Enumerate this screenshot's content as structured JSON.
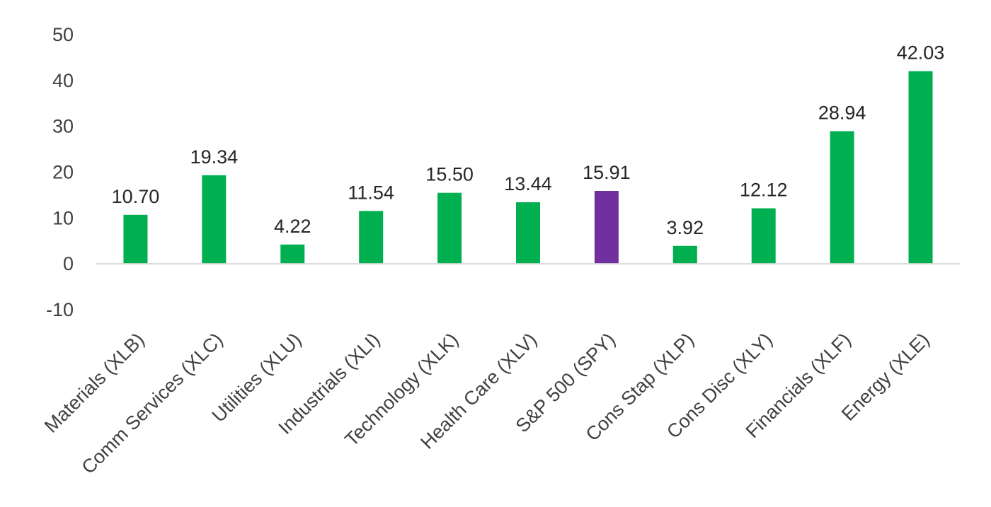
{
  "chart_data": {
    "type": "bar",
    "title": "",
    "xlabel": "",
    "ylabel": "",
    "ylim": [
      -10,
      50
    ],
    "yticks": [
      50,
      40,
      30,
      20,
      10,
      0,
      -10
    ],
    "grid": false,
    "legend": "none",
    "categories": [
      "Materials (XLB)",
      "Comm Services (XLC)",
      "Utilities (XLU)",
      "Industrials (XLI)",
      "Technology (XLK)",
      "Health Care (XLV)",
      "S&P 500 (SPY)",
      "Cons Stap (XLP)",
      "Cons Disc (XLY)",
      "Financials (XLF)",
      "Energy (XLE)"
    ],
    "values": [
      10.7,
      19.34,
      4.22,
      11.54,
      15.5,
      13.44,
      15.91,
      3.92,
      12.12,
      28.94,
      42.03
    ],
    "value_labels": [
      "10.70",
      "19.34",
      "4.22",
      "11.54",
      "15.50",
      "13.44",
      "15.91",
      "3.92",
      "12.12",
      "28.94",
      "42.03"
    ],
    "bar_colors": [
      "#00b050",
      "#00b050",
      "#00b050",
      "#00b050",
      "#00b050",
      "#00b050",
      "#7030a0",
      "#00b050",
      "#00b050",
      "#00b050",
      "#00b050"
    ],
    "axis_color": "#d9d9d9"
  }
}
